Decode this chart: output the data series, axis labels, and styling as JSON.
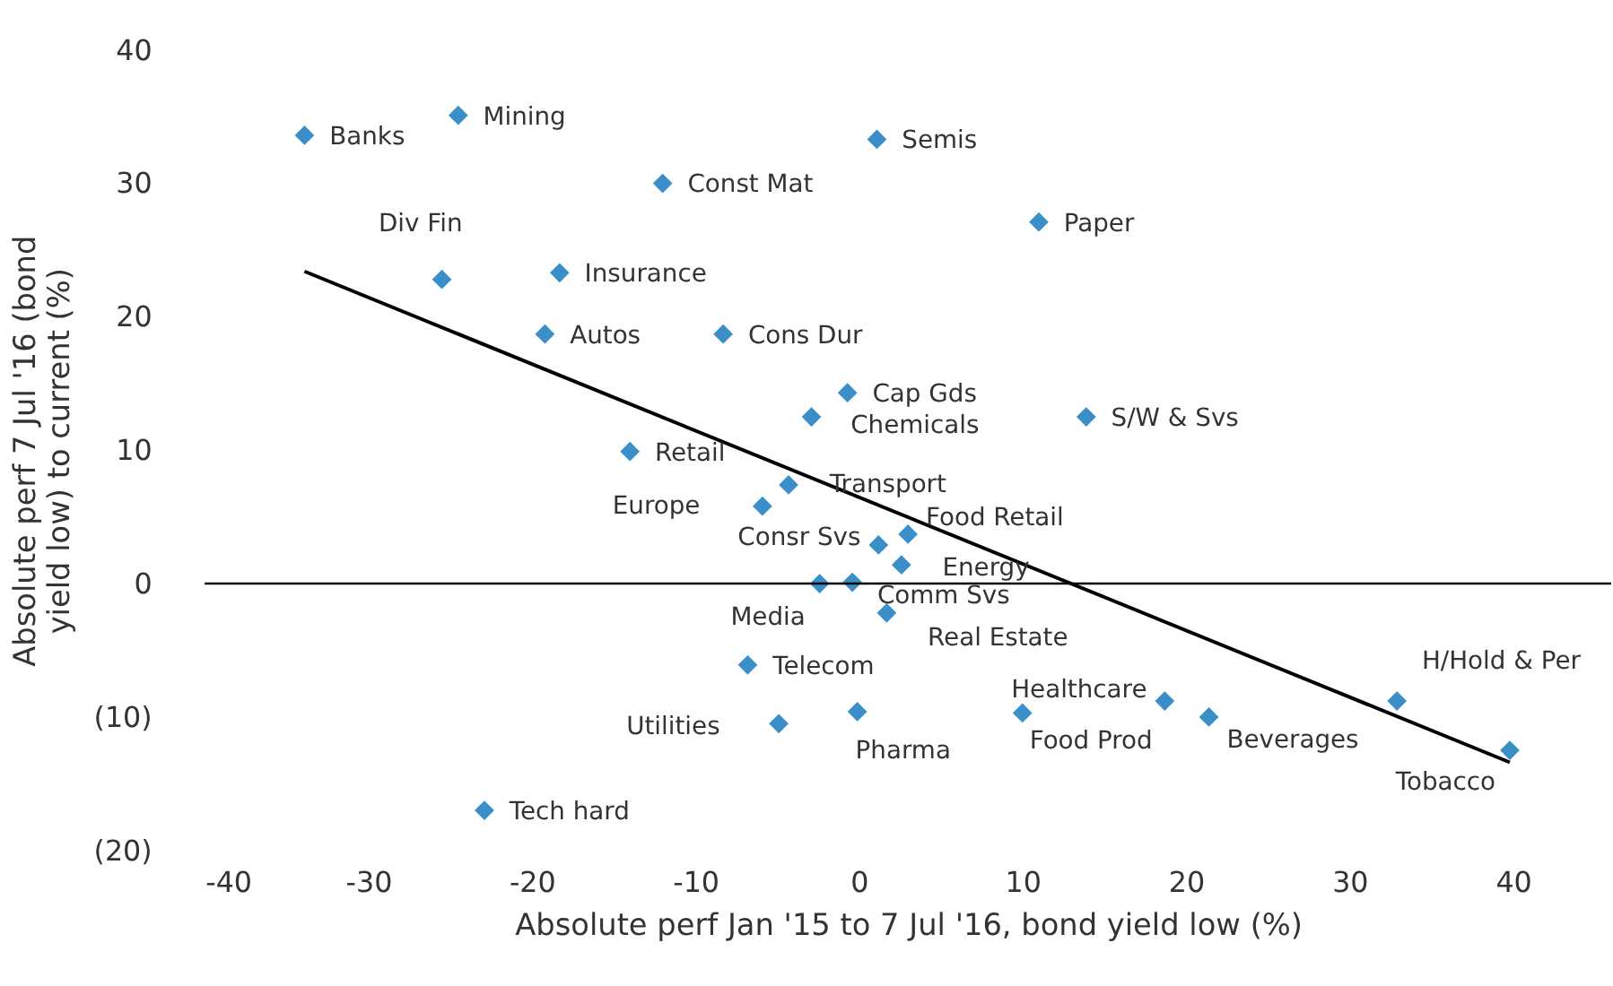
{
  "chart_data": {
    "type": "scatter",
    "xlabel": "Absolute perf Jan '15 to 7 Jul '16, bond yield low (%)",
    "ylabel": "Absolute perf 7 Jul '16 (bond yield low) to current (%)",
    "xlim": [
      -40,
      46
    ],
    "xticks": [
      -40,
      -30,
      -20,
      -10,
      0,
      10,
      20,
      30,
      40
    ],
    "ylim": [
      -20,
      40
    ],
    "yticks": [
      {
        "value": -20,
        "label": "(20)"
      },
      {
        "value": -10,
        "label": "(10)"
      },
      0,
      10,
      20,
      30,
      40
    ],
    "grid": false,
    "marker": "diamond",
    "ref_lines": [
      {
        "axis": "y",
        "value": 0,
        "color": "#000000"
      }
    ],
    "series": [
      {
        "type": "scatter",
        "color": "#3a8fc9",
        "x": [
          -33.9,
          -24.5,
          -12.0,
          1.1,
          11.0,
          -25.5,
          -18.3,
          -19.2,
          -8.3,
          -0.7,
          -2.9,
          13.9,
          -14.0,
          -4.3,
          -5.9,
          1.2,
          3.0,
          2.6,
          -2.4,
          -0.4,
          1.7,
          -6.8,
          -4.9,
          -0.1,
          10.0,
          18.7,
          21.4,
          32.9,
          39.8,
          -22.9
        ],
        "values": [
          33.6,
          35.1,
          30.0,
          33.3,
          27.1,
          22.8,
          23.3,
          18.7,
          18.7,
          14.3,
          12.5,
          12.5,
          9.9,
          7.4,
          5.8,
          2.9,
          3.7,
          1.4,
          0.0,
          0.1,
          -2.2,
          -6.1,
          -10.5,
          -9.6,
          -9.7,
          -8.8,
          -10.0,
          -8.8,
          -12.5,
          -17.0
        ]
      },
      {
        "type": "line",
        "color": "#000000",
        "line_style": "solid",
        "marker": "none",
        "x": [
          -33.9,
          39.8
        ],
        "values": [
          23.4,
          -13.4
        ]
      }
    ],
    "annotations": [
      {
        "text": "Banks",
        "x": -33.9,
        "y": 33.6
      },
      {
        "text": "Mining",
        "x": -24.5,
        "y": 35.1
      },
      {
        "text": "Const Mat",
        "x": -12.0,
        "y": 30.0
      },
      {
        "text": "Semis",
        "x": 1.1,
        "y": 33.3
      },
      {
        "text": "Paper",
        "x": 11.0,
        "y": 27.1
      },
      {
        "text": "Div Fin",
        "x": -25.5,
        "y": 22.8
      },
      {
        "text": "Insurance",
        "x": -18.3,
        "y": 23.3
      },
      {
        "text": "Autos",
        "x": -19.2,
        "y": 18.7
      },
      {
        "text": "Cons Dur",
        "x": -8.3,
        "y": 18.7
      },
      {
        "text": "Cap Gds",
        "x": -0.7,
        "y": 14.3
      },
      {
        "text": "Chemicals",
        "x": -2.9,
        "y": 12.5
      },
      {
        "text": "S/W & Svs",
        "x": 13.9,
        "y": 12.5
      },
      {
        "text": "Retail",
        "x": -14.0,
        "y": 9.9
      },
      {
        "text": "Transport",
        "x": -4.3,
        "y": 7.4
      },
      {
        "text": "Europe",
        "x": -5.9,
        "y": 5.8
      },
      {
        "text": "Consr Svs",
        "x": 1.2,
        "y": 2.9
      },
      {
        "text": "Food Retail",
        "x": 3.0,
        "y": 3.7
      },
      {
        "text": "Energy",
        "x": 2.6,
        "y": 1.4
      },
      {
        "text": "Media",
        "x": -2.4,
        "y": 0.0
      },
      {
        "text": "Comm Svs",
        "x": -0.4,
        "y": 0.1
      },
      {
        "text": "Real Estate",
        "x": 1.7,
        "y": -2.2
      },
      {
        "text": "Telecom",
        "x": -6.8,
        "y": -6.1
      },
      {
        "text": "Utilities",
        "x": -4.9,
        "y": -10.5
      },
      {
        "text": "Pharma",
        "x": -0.1,
        "y": -9.6
      },
      {
        "text": "Food Prod",
        "x": 10.0,
        "y": -9.7
      },
      {
        "text": "Healthcare",
        "x": 18.7,
        "y": -8.8
      },
      {
        "text": "Beverages",
        "x": 21.4,
        "y": -10.0
      },
      {
        "text": "H/Hold & Per",
        "x": 32.9,
        "y": -8.8
      },
      {
        "text": "Tobacco",
        "x": 39.8,
        "y": -12.5
      },
      {
        "text": "Tech hard",
        "x": -22.9,
        "y": -17.0
      }
    ]
  }
}
